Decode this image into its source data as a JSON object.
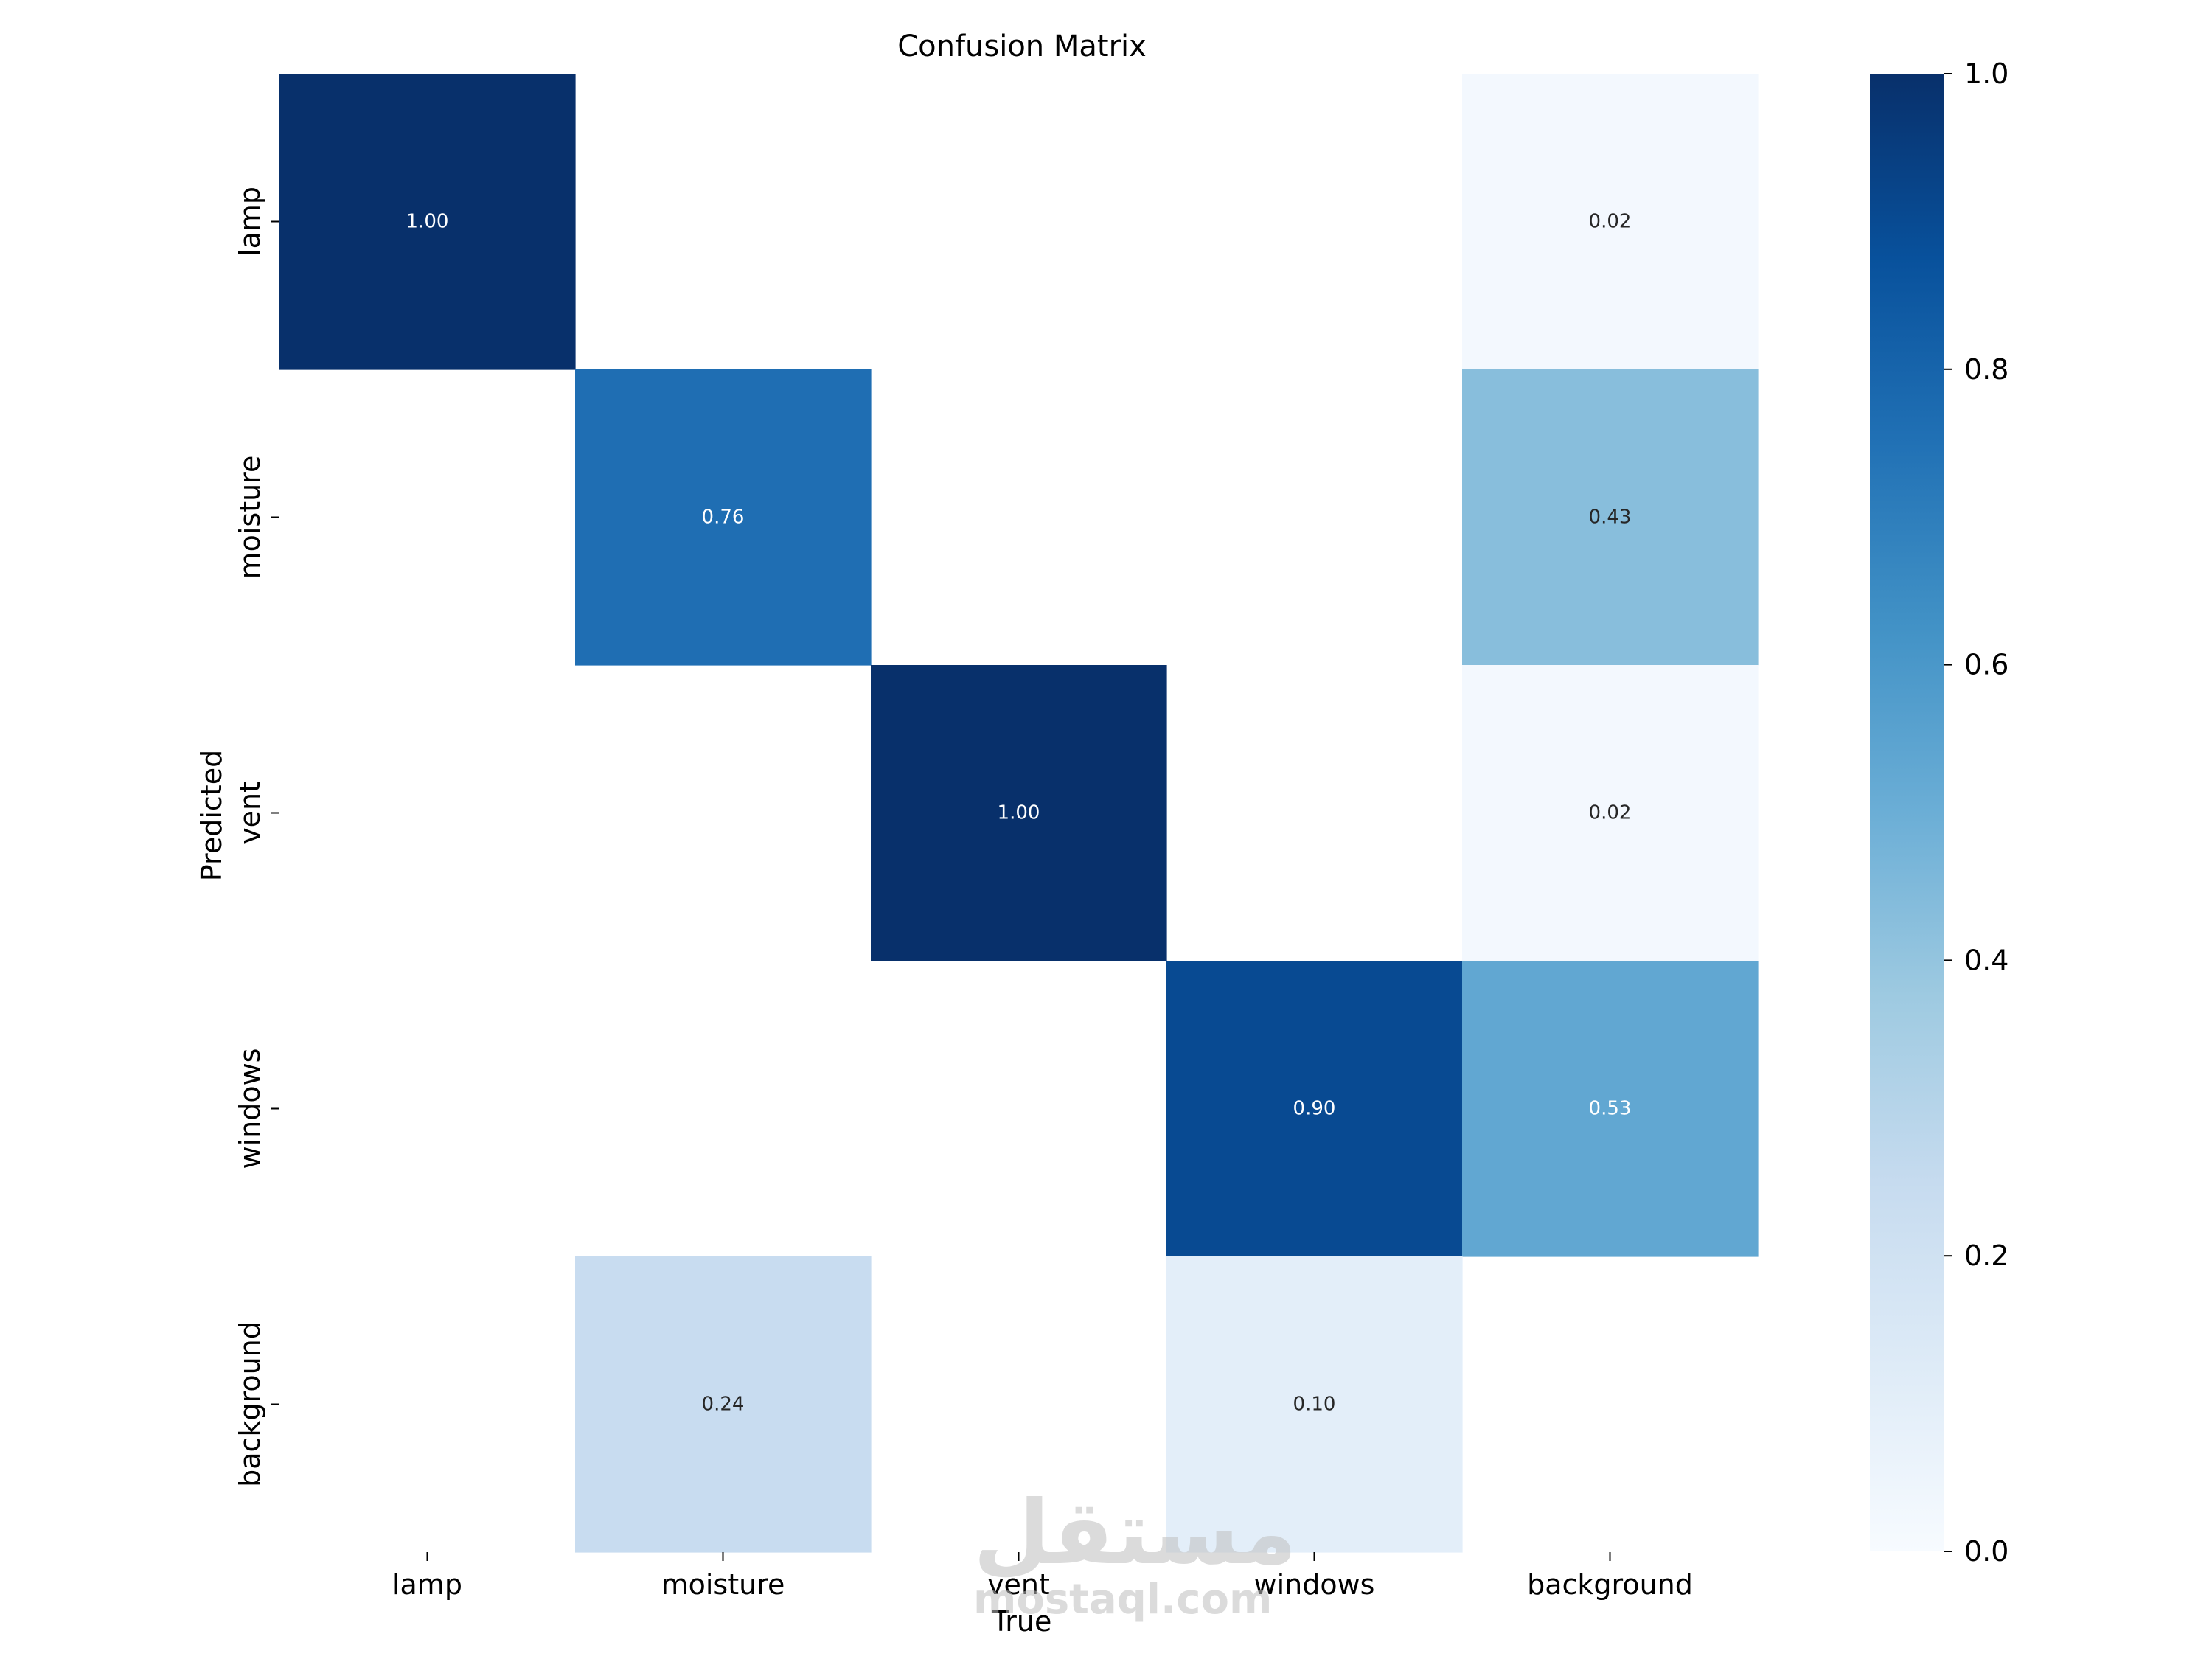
{
  "chart_data": {
    "type": "heatmap",
    "title": "Confusion Matrix",
    "xlabel": "True",
    "ylabel": "Predicted",
    "x_categories": [
      "lamp",
      "moisture",
      "vent",
      "windows",
      "background"
    ],
    "y_categories": [
      "lamp",
      "moisture",
      "vent",
      "windows",
      "background"
    ],
    "values": [
      [
        1.0,
        null,
        null,
        null,
        0.02
      ],
      [
        null,
        0.76,
        null,
        null,
        0.43
      ],
      [
        null,
        null,
        1.0,
        null,
        0.02
      ],
      [
        null,
        null,
        null,
        0.9,
        0.53
      ],
      [
        null,
        0.24,
        null,
        0.1,
        null
      ]
    ],
    "value_format": "0.00",
    "colormap": "Blues",
    "colorbar": {
      "range": [
        0.0,
        1.0
      ],
      "ticks": [
        0.0,
        0.2,
        0.4,
        0.6,
        0.8,
        1.0
      ],
      "tick_labels": [
        "0.0",
        "0.2",
        "0.4",
        "0.6",
        "0.8",
        "1.0"
      ]
    },
    "colors": {
      "cmap_stops": [
        "#f7fbff",
        "#deebf7",
        "#c6dbef",
        "#9ecae1",
        "#6baed6",
        "#4292c6",
        "#2171b5",
        "#08519c",
        "#08306b"
      ],
      "text_dark": "#262626",
      "text_light": "#ffffff"
    }
  },
  "watermark": {
    "arabic": "مستقل",
    "latin": "mostaql.com"
  }
}
